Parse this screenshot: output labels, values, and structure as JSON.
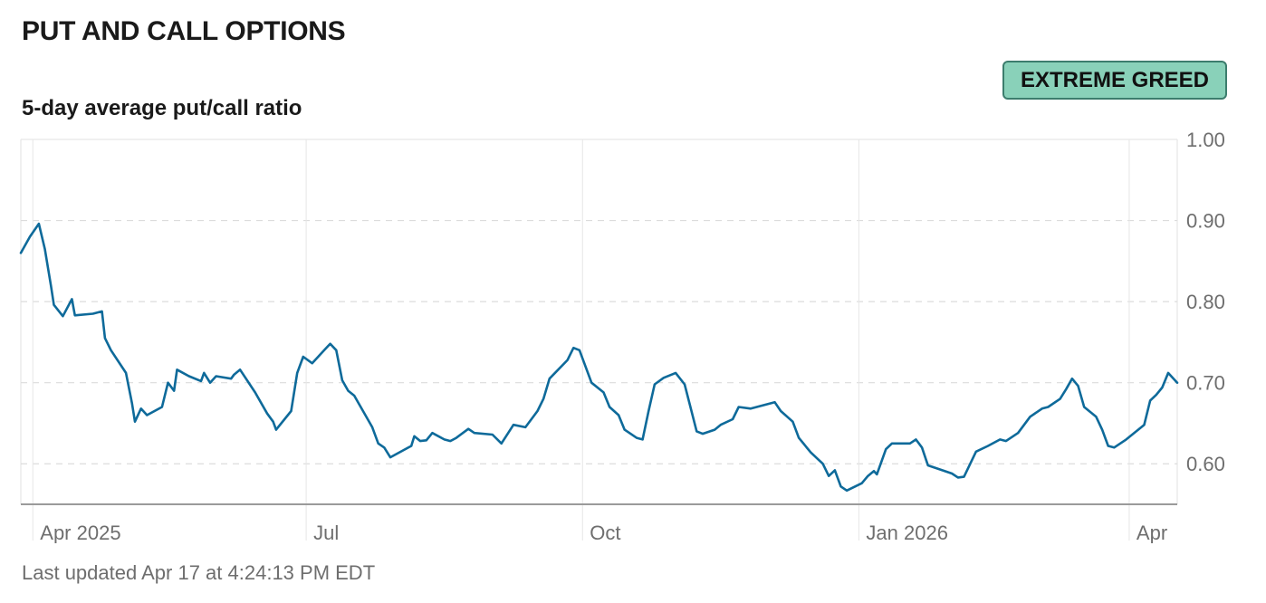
{
  "header": {
    "title": "PUT AND CALL OPTIONS",
    "subtitle": "5-day average put/call ratio"
  },
  "badge": {
    "label": "EXTREME GREED",
    "background": "#89d1b9"
  },
  "footer": {
    "updated": "Last updated Apr 17 at 4:24:13 PM EDT"
  },
  "chart_data": {
    "type": "line",
    "title": "",
    "xlabel": "",
    "ylabel": "",
    "ylim": [
      0.55,
      1.0
    ],
    "xlim": [
      "2025-03-28",
      "2026-04-17"
    ],
    "grid": true,
    "line_color": "#0e6a9a",
    "y_ticks": [
      "1.00",
      "0.90",
      "0.80",
      "0.70",
      "0.60"
    ],
    "x_ticks": [
      {
        "label": "Apr 2025",
        "date": "2025-04-01"
      },
      {
        "label": "Jul",
        "date": "2025-07-01"
      },
      {
        "label": "Oct",
        "date": "2025-10-01"
      },
      {
        "label": "Jan 2026",
        "date": "2026-01-01"
      },
      {
        "label": "Apr",
        "date": "2026-04-01"
      }
    ],
    "series": [
      {
        "points": [
          [
            "2025-03-28",
            0.86
          ],
          [
            "2025-03-31",
            0.88
          ],
          [
            "2025-04-03",
            0.896
          ],
          [
            "2025-04-05",
            0.865
          ],
          [
            "2025-04-07",
            0.82
          ],
          [
            "2025-04-08",
            0.796
          ],
          [
            "2025-04-11",
            0.782
          ],
          [
            "2025-04-14",
            0.803
          ],
          [
            "2025-04-15",
            0.783
          ],
          [
            "2025-04-21",
            0.785
          ],
          [
            "2025-04-24",
            0.788
          ],
          [
            "2025-04-25",
            0.755
          ],
          [
            "2025-04-27",
            0.74
          ],
          [
            "2025-05-02",
            0.712
          ],
          [
            "2025-05-04",
            0.675
          ],
          [
            "2025-05-05",
            0.652
          ],
          [
            "2025-05-07",
            0.668
          ],
          [
            "2025-05-09",
            0.66
          ],
          [
            "2025-05-14",
            0.67
          ],
          [
            "2025-05-16",
            0.7
          ],
          [
            "2025-05-18",
            0.69
          ],
          [
            "2025-05-19",
            0.716
          ],
          [
            "2025-05-23",
            0.708
          ],
          [
            "2025-05-27",
            0.702
          ],
          [
            "2025-05-28",
            0.712
          ],
          [
            "2025-05-30",
            0.7
          ],
          [
            "2025-06-01",
            0.708
          ],
          [
            "2025-06-06",
            0.705
          ],
          [
            "2025-06-07",
            0.71
          ],
          [
            "2025-06-09",
            0.716
          ],
          [
            "2025-06-14",
            0.688
          ],
          [
            "2025-06-18",
            0.662
          ],
          [
            "2025-06-20",
            0.652
          ],
          [
            "2025-06-21",
            0.642
          ],
          [
            "2025-06-26",
            0.665
          ],
          [
            "2025-06-28",
            0.712
          ],
          [
            "2025-06-30",
            0.732
          ],
          [
            "2025-07-03",
            0.724
          ],
          [
            "2025-07-07",
            0.74
          ],
          [
            "2025-07-09",
            0.748
          ],
          [
            "2025-07-11",
            0.74
          ],
          [
            "2025-07-13",
            0.703
          ],
          [
            "2025-07-15",
            0.69
          ],
          [
            "2025-07-17",
            0.684
          ],
          [
            "2025-07-23",
            0.645
          ],
          [
            "2025-07-25",
            0.625
          ],
          [
            "2025-07-27",
            0.62
          ],
          [
            "2025-07-29",
            0.608
          ],
          [
            "2025-08-05",
            0.622
          ],
          [
            "2025-08-06",
            0.634
          ],
          [
            "2025-08-08",
            0.628
          ],
          [
            "2025-08-10",
            0.629
          ],
          [
            "2025-08-12",
            0.638
          ],
          [
            "2025-08-16",
            0.63
          ],
          [
            "2025-08-18",
            0.628
          ],
          [
            "2025-08-20",
            0.632
          ],
          [
            "2025-08-24",
            0.643
          ],
          [
            "2025-08-26",
            0.638
          ],
          [
            "2025-09-01",
            0.636
          ],
          [
            "2025-09-04",
            0.625
          ],
          [
            "2025-09-08",
            0.648
          ],
          [
            "2025-09-12",
            0.645
          ],
          [
            "2025-09-16",
            0.665
          ],
          [
            "2025-09-18",
            0.68
          ],
          [
            "2025-09-20",
            0.705
          ],
          [
            "2025-09-26",
            0.728
          ],
          [
            "2025-09-28",
            0.743
          ],
          [
            "2025-09-30",
            0.74
          ],
          [
            "2025-10-04",
            0.7
          ],
          [
            "2025-10-08",
            0.688
          ],
          [
            "2025-10-10",
            0.67
          ],
          [
            "2025-10-13",
            0.66
          ],
          [
            "2025-10-15",
            0.642
          ],
          [
            "2025-10-19",
            0.632
          ],
          [
            "2025-10-21",
            0.63
          ],
          [
            "2025-10-23",
            0.665
          ],
          [
            "2025-10-25",
            0.698
          ],
          [
            "2025-10-28",
            0.706
          ],
          [
            "2025-11-01",
            0.712
          ],
          [
            "2025-11-04",
            0.698
          ],
          [
            "2025-11-08",
            0.64
          ],
          [
            "2025-11-10",
            0.637
          ],
          [
            "2025-11-14",
            0.642
          ],
          [
            "2025-11-16",
            0.648
          ],
          [
            "2025-11-20",
            0.655
          ],
          [
            "2025-11-22",
            0.67
          ],
          [
            "2025-11-26",
            0.668
          ],
          [
            "2025-12-04",
            0.676
          ],
          [
            "2025-12-06",
            0.665
          ],
          [
            "2025-12-10",
            0.652
          ],
          [
            "2025-12-12",
            0.632
          ],
          [
            "2025-12-16",
            0.614
          ],
          [
            "2025-12-20",
            0.6
          ],
          [
            "2025-12-22",
            0.585
          ],
          [
            "2025-12-24",
            0.592
          ],
          [
            "2025-12-26",
            0.572
          ],
          [
            "2025-12-28",
            0.567
          ],
          [
            "2026-01-02",
            0.576
          ],
          [
            "2026-01-04",
            0.585
          ],
          [
            "2026-01-06",
            0.591
          ],
          [
            "2026-01-07",
            0.587
          ],
          [
            "2026-01-10",
            0.618
          ],
          [
            "2026-01-12",
            0.625
          ],
          [
            "2026-01-18",
            0.625
          ],
          [
            "2026-01-20",
            0.63
          ],
          [
            "2026-01-22",
            0.62
          ],
          [
            "2026-01-24",
            0.598
          ],
          [
            "2026-01-28",
            0.593
          ],
          [
            "2026-02-01",
            0.588
          ],
          [
            "2026-02-03",
            0.583
          ],
          [
            "2026-02-05",
            0.584
          ],
          [
            "2026-02-09",
            0.615
          ],
          [
            "2026-02-13",
            0.622
          ],
          [
            "2026-02-17",
            0.63
          ],
          [
            "2026-02-19",
            0.628
          ],
          [
            "2026-02-23",
            0.638
          ],
          [
            "2026-02-27",
            0.658
          ],
          [
            "2026-03-03",
            0.668
          ],
          [
            "2026-03-05",
            0.67
          ],
          [
            "2026-03-09",
            0.68
          ],
          [
            "2026-03-11",
            0.692
          ],
          [
            "2026-03-13",
            0.705
          ],
          [
            "2026-03-15",
            0.696
          ],
          [
            "2026-03-17",
            0.67
          ],
          [
            "2026-03-21",
            0.658
          ],
          [
            "2026-03-23",
            0.642
          ],
          [
            "2026-03-25",
            0.622
          ],
          [
            "2026-03-27",
            0.62
          ],
          [
            "2026-03-31",
            0.63
          ],
          [
            "2026-04-06",
            0.648
          ],
          [
            "2026-04-08",
            0.678
          ],
          [
            "2026-04-10",
            0.685
          ],
          [
            "2026-04-12",
            0.694
          ],
          [
            "2026-04-14",
            0.712
          ],
          [
            "2026-04-17",
            0.7
          ]
        ]
      }
    ]
  }
}
